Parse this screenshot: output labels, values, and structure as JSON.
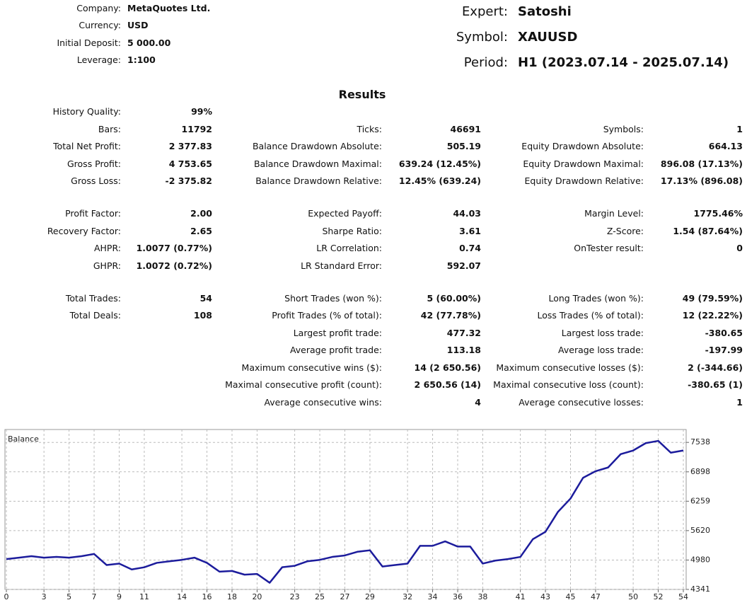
{
  "header": {
    "left": [
      {
        "label": "Company:",
        "value": "MetaQuotes Ltd."
      },
      {
        "label": "Currency:",
        "value": "USD"
      },
      {
        "label": "Initial Deposit:",
        "value": "5 000.00"
      },
      {
        "label": "Leverage:",
        "value": "1:100"
      }
    ],
    "right": [
      {
        "label": "Expert:",
        "value": "Satoshi"
      },
      {
        "label": "Symbol:",
        "value": "XAUUSD"
      },
      {
        "label": "Period:",
        "value": "H1 (2023.07.14 - 2025.07.14)"
      }
    ]
  },
  "results": {
    "title": "Results",
    "sections": [
      [
        {
          "left": {
            "label": "History Quality:",
            "value": "99%"
          }
        },
        {
          "left": {
            "label": "Bars:",
            "value": "11792"
          },
          "mid": {
            "label": "Ticks:",
            "value": "46691"
          },
          "right": {
            "label": "Symbols:",
            "value": "1"
          }
        },
        {
          "left": {
            "label": "Total Net Profit:",
            "value": "2 377.83"
          },
          "mid": {
            "label": "Balance Drawdown Absolute:",
            "value": "505.19"
          },
          "right": {
            "label": "Equity Drawdown Absolute:",
            "value": "664.13"
          }
        },
        {
          "left": {
            "label": "Gross Profit:",
            "value": "4 753.65"
          },
          "mid": {
            "label": "Balance Drawdown Maximal:",
            "value": "639.24 (12.45%)"
          },
          "right": {
            "label": "Equity Drawdown Maximal:",
            "value": "896.08 (17.13%)"
          }
        },
        {
          "left": {
            "label": "Gross Loss:",
            "value": "-2 375.82"
          },
          "mid": {
            "label": "Balance Drawdown Relative:",
            "value": "12.45% (639.24)"
          },
          "right": {
            "label": "Equity Drawdown Relative:",
            "value": "17.13% (896.08)"
          }
        }
      ],
      [
        {
          "left": {
            "label": "Profit Factor:",
            "value": "2.00"
          },
          "mid": {
            "label": "Expected Payoff:",
            "value": "44.03"
          },
          "right": {
            "label": "Margin Level:",
            "value": "1775.46%"
          }
        },
        {
          "left": {
            "label": "Recovery Factor:",
            "value": "2.65"
          },
          "mid": {
            "label": "Sharpe Ratio:",
            "value": "3.61"
          },
          "right": {
            "label": "Z-Score:",
            "value": "1.54 (87.64%)"
          }
        },
        {
          "left": {
            "label": "AHPR:",
            "value": "1.0077 (0.77%)"
          },
          "mid": {
            "label": "LR Correlation:",
            "value": "0.74"
          },
          "right": {
            "label": "OnTester result:",
            "value": "0"
          }
        },
        {
          "left": {
            "label": "GHPR:",
            "value": "1.0072 (0.72%)"
          },
          "mid": {
            "label": "LR Standard Error:",
            "value": "592.07"
          }
        }
      ],
      [
        {
          "left": {
            "label": "Total Trades:",
            "value": "54"
          },
          "mid": {
            "label": "Short Trades (won %):",
            "value": "5 (60.00%)"
          },
          "right": {
            "label": "Long Trades (won %):",
            "value": "49 (79.59%)"
          }
        },
        {
          "left": {
            "label": "Total Deals:",
            "value": "108"
          },
          "mid": {
            "label": "Profit Trades (% of total):",
            "value": "42 (77.78%)"
          },
          "right": {
            "label": "Loss Trades (% of total):",
            "value": "12 (22.22%)"
          }
        },
        {
          "mid": {
            "label": "Largest profit trade:",
            "value": "477.32"
          },
          "right": {
            "label": "Largest loss trade:",
            "value": "-380.65"
          }
        },
        {
          "mid": {
            "label": "Average profit trade:",
            "value": "113.18"
          },
          "right": {
            "label": "Average loss trade:",
            "value": "-197.99"
          }
        },
        {
          "mid": {
            "label": "Maximum consecutive wins ($):",
            "value": "14 (2 650.56)"
          },
          "right": {
            "label": "Maximum consecutive losses ($):",
            "value": "2 (-344.66)"
          }
        },
        {
          "mid": {
            "label": "Maximal consecutive profit (count):",
            "value": "2 650.56 (14)"
          },
          "right": {
            "label": "Maximal consecutive loss (count):",
            "value": "-380.65 (1)"
          }
        },
        {
          "mid": {
            "label": "Average consecutive wins:",
            "value": "4"
          },
          "right": {
            "label": "Average consecutive losses:",
            "value": "1"
          }
        }
      ]
    ]
  },
  "chart_data": {
    "type": "line",
    "title": "Balance",
    "color": "#1c1c9c",
    "x": [
      0,
      1,
      2,
      3,
      4,
      5,
      6,
      7,
      8,
      9,
      10,
      11,
      12,
      13,
      14,
      15,
      16,
      17,
      18,
      19,
      20,
      21,
      22,
      23,
      24,
      25,
      26,
      27,
      28,
      29,
      30,
      31,
      32,
      33,
      34,
      35,
      36,
      37,
      38,
      39,
      40,
      41,
      42,
      43,
      44,
      45,
      46,
      47,
      48,
      49,
      50,
      51,
      52,
      53,
      54
    ],
    "values": [
      5000,
      5032,
      5064,
      5032,
      5048,
      5032,
      5064,
      5112,
      4871,
      4903,
      4775,
      4823,
      4919,
      4952,
      4984,
      5032,
      4919,
      4727,
      4743,
      4662,
      4678,
      4486,
      4823,
      4855,
      4952,
      4984,
      5048,
      5080,
      5160,
      5192,
      4839,
      4871,
      4903,
      5289,
      5289,
      5386,
      5273,
      5273,
      4903,
      4968,
      5000,
      5048,
      5434,
      5594,
      6028,
      6317,
      6768,
      6912,
      6993,
      7282,
      7362,
      7522,
      7571,
      7314,
      7362
    ],
    "xlim": [
      0,
      54
    ],
    "xticks": [
      0,
      3,
      5,
      7,
      9,
      11,
      14,
      16,
      18,
      20,
      23,
      25,
      27,
      29,
      32,
      34,
      36,
      38,
      41,
      43,
      45,
      47,
      50,
      52,
      54
    ],
    "ylim": [
      4341,
      7818
    ],
    "yticks": [
      4341,
      4980,
      5620,
      6259,
      6898,
      7538
    ],
    "grid": true
  }
}
